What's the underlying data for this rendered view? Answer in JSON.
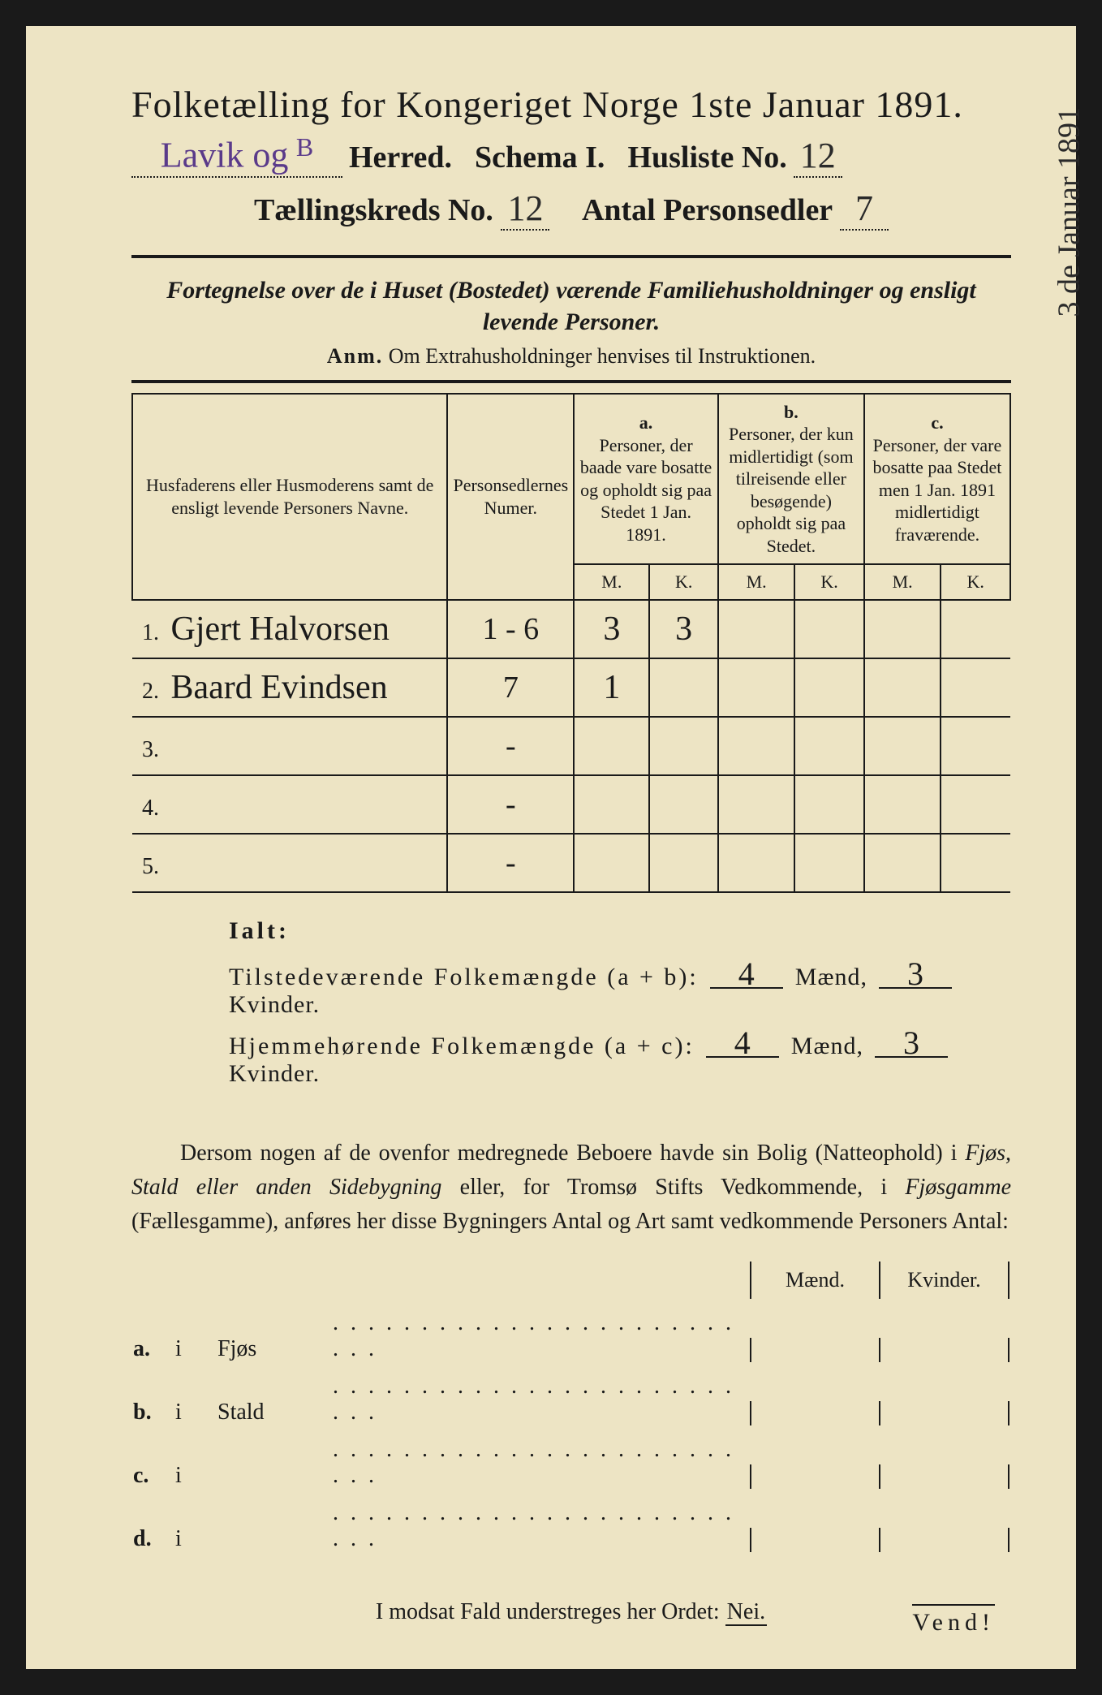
{
  "colors": {
    "paper": "#ede4c4",
    "ink": "#1a1a1a",
    "handwriting": "#2a2a2a",
    "purple_ink": "#5a3a8a",
    "border": "#1a1a1a"
  },
  "margin_note": "3 de Januar 1891",
  "header": {
    "title": "Folketælling for Kongeriget Norge 1ste Januar 1891.",
    "herred_handwritten": "Lavik og",
    "herred_suffix": "B",
    "herred_label": "Herred.",
    "schema": "Schema I.",
    "husliste_label": "Husliste No.",
    "husliste_no": "12",
    "kreds_label": "Tællingskreds No.",
    "kreds_no": "12",
    "antal_label": "Antal Personsedler",
    "antal_personsedler": "7"
  },
  "fortegnelse": {
    "line1": "Fortegnelse over de i Huset (Bostedet) værende Familiehusholdninger og ensligt",
    "line2": "levende Personer.",
    "anm_label": "Anm.",
    "anm_text": "Om Extrahusholdninger henvises til Instruktionen."
  },
  "table_headers": {
    "col1": "Husfaderens eller Husmoderens samt de ensligt levende Personers Navne.",
    "col2": "Personsedlernes Numer.",
    "a_label": "a.",
    "a_text": "Personer, der baade vare bosatte og opholdt sig paa Stedet 1 Jan. 1891.",
    "b_label": "b.",
    "b_text": "Personer, der kun midlertidigt (som tilreisende eller besøgende) opholdt sig paa Stedet.",
    "c_label": "c.",
    "c_text": "Personer, der vare bosatte paa Stedet men 1 Jan. 1891 midlertidigt fraværende.",
    "m": "M.",
    "k": "K."
  },
  "rows": [
    {
      "num": "1.",
      "name": "Gjert Halvorsen",
      "sedler": "1 - 6",
      "a_m": "3",
      "a_k": "3",
      "b_m": "",
      "b_k": "",
      "c_m": "",
      "c_k": ""
    },
    {
      "num": "2.",
      "name": "Baard Evindsen",
      "sedler": "7",
      "a_m": "1",
      "a_k": "",
      "b_m": "",
      "b_k": "",
      "c_m": "",
      "c_k": ""
    },
    {
      "num": "3.",
      "name": "",
      "sedler": "-",
      "a_m": "",
      "a_k": "",
      "b_m": "",
      "b_k": "",
      "c_m": "",
      "c_k": ""
    },
    {
      "num": "4.",
      "name": "",
      "sedler": "-",
      "a_m": "",
      "a_k": "",
      "b_m": "",
      "b_k": "",
      "c_m": "",
      "c_k": ""
    },
    {
      "num": "5.",
      "name": "",
      "sedler": "-",
      "a_m": "",
      "a_k": "",
      "b_m": "",
      "b_k": "",
      "c_m": "",
      "c_k": ""
    }
  ],
  "ialt": {
    "title": "Ialt:",
    "line1_label": "Tilstedeværende Folkemængde (a + b):",
    "line2_label": "Hjemmehørende Folkemængde (a + c):",
    "maend_label": "Mænd,",
    "kvinder_label": "Kvinder.",
    "line1_m": "4",
    "line1_k": "3",
    "line2_m": "4",
    "line2_k": "3"
  },
  "dersom": {
    "text1": "Dersom nogen af de ovenfor medregnede Beboere havde sin Bolig (Natteophold) i ",
    "it1": "Fjøs, Stald eller anden Sidebygning",
    "text2": " eller, for Tromsø Stifts Vedkommende, i ",
    "it2": "Fjøsgamme",
    "text3": " (Fællesgamme), anføres her disse Bygningers Antal og Art samt vedkommende Personers Antal:"
  },
  "buildings": {
    "maend": "Mænd.",
    "kvinder": "Kvinder.",
    "rows": [
      {
        "label": "a.",
        "i": "i",
        "name": "Fjøs"
      },
      {
        "label": "b.",
        "i": "i",
        "name": "Stald"
      },
      {
        "label": "c.",
        "i": "i",
        "name": ""
      },
      {
        "label": "d.",
        "i": "i",
        "name": ""
      }
    ]
  },
  "nei_line": {
    "text": "I modsat Fald understreges her Ordet:",
    "nei": "Nei."
  },
  "vend": "Vend!"
}
